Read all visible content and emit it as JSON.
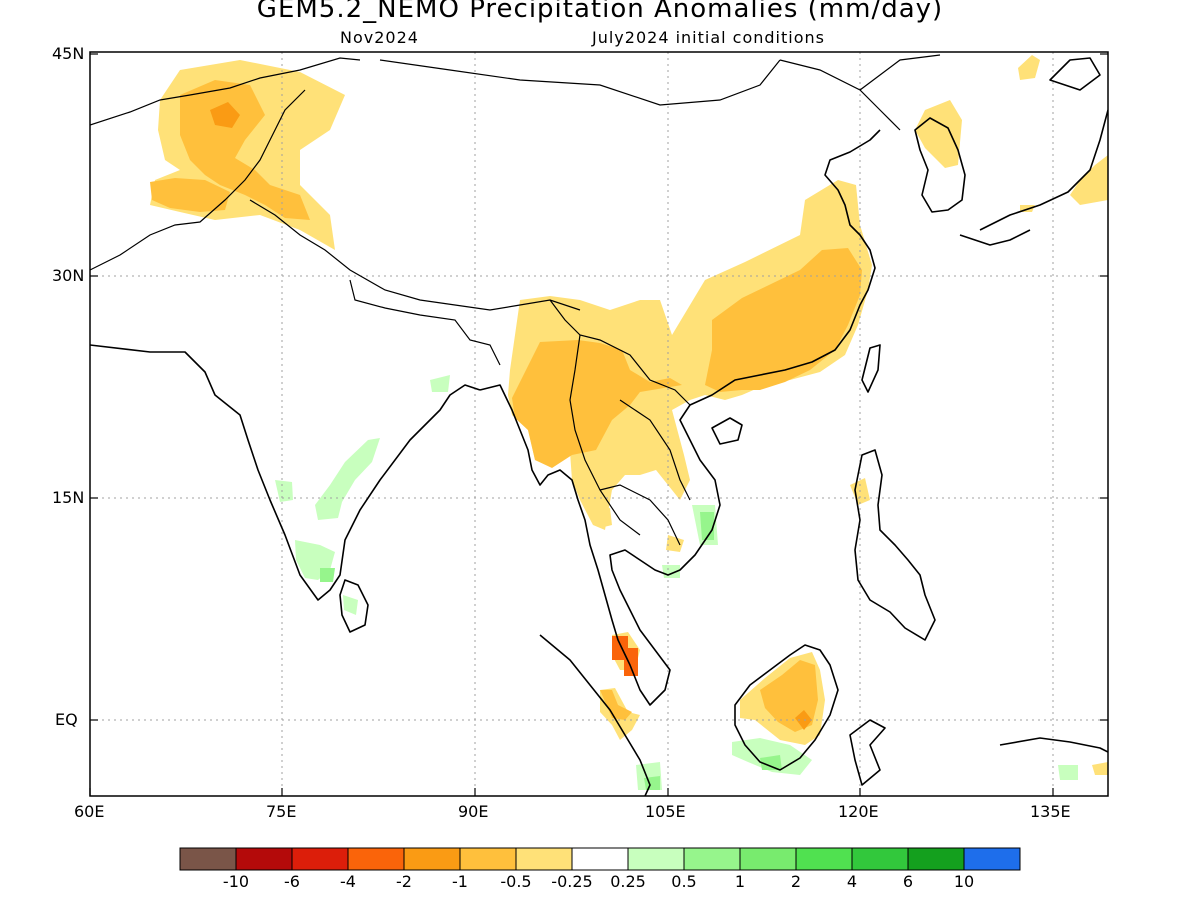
{
  "title": "GEM5.2_NEMO Precipitation Anomalies (mm/day)",
  "subtitle_left": "Nov2024",
  "subtitle_right": "July2024 initial conditions",
  "axes": {
    "lat_ticks": [
      "45N",
      "30N",
      "15N",
      "EQ"
    ],
    "lon_ticks": [
      "60E",
      "75E",
      "90E",
      "105E",
      "120E",
      "135E"
    ]
  },
  "colorbar": {
    "labels": [
      "-10",
      "-6",
      "-4",
      "-2",
      "-1",
      "-0.5",
      "-0.25",
      "0.25",
      "0.5",
      "1",
      "2",
      "4",
      "6",
      "10"
    ],
    "colors": [
      "#7a5548",
      "#b40a0a",
      "#dc1e0a",
      "#fa640a",
      "#fa9b14",
      "#ffc03c",
      "#ffe178",
      "#ffffff",
      "#c8ffbe",
      "#96f58c",
      "#78eb6e",
      "#50e150",
      "#32c83c",
      "#14a01e",
      "#1e6eeb"
    ]
  },
  "colors": {
    "dry_light": "#ffe178",
    "dry_mid": "#ffc03c",
    "dry_strong": "#fa9b14",
    "dry_severe": "#fa640a",
    "wet_light": "#c8ffbe",
    "wet_mid": "#96f58c",
    "coast": "#000000",
    "grid": "#a0a0a0"
  }
}
